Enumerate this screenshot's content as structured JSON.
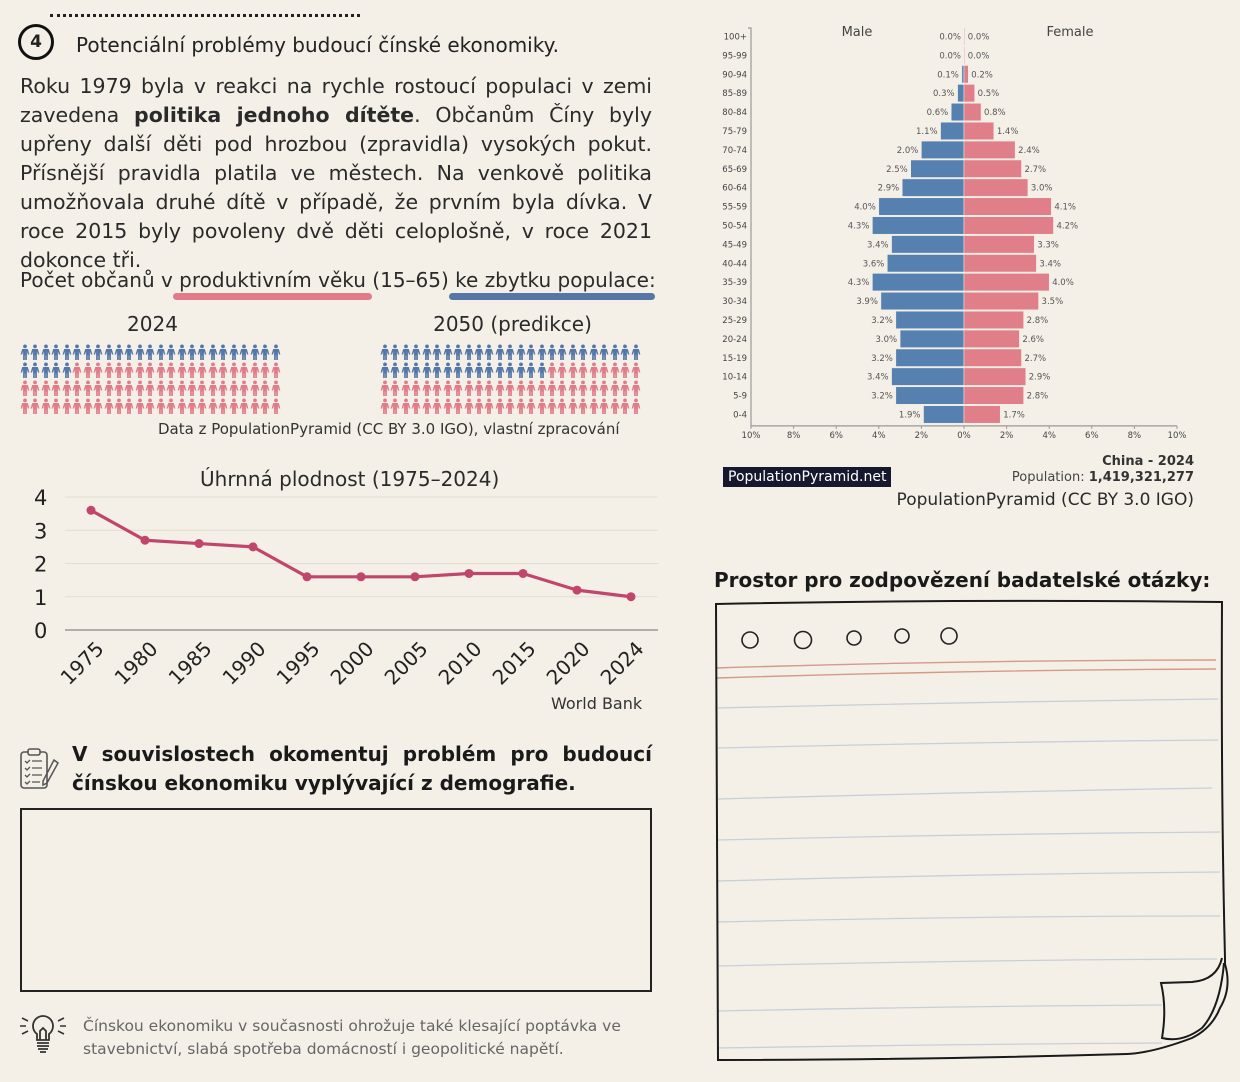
{
  "section": {
    "number": "4",
    "title": "Potenciální problémy budoucí čínské ekonomiky."
  },
  "intro": {
    "before_bold": "Roku 1979 byla v reakci na rychle rostoucí populaci v zemi zavedena ",
    "bold": "politika jednoho dítěte",
    "after_bold": ". Občanům Číny byly upřeny další děti pod hrozbou (zpravidla) vysokých pokut. Přísnější pravidla platila ve městech. Na venkově politika umožňovala druhé dítě v případě, že prvním byla dívka. V roce 2015 byly povoleny dvě děti celoplošně, v roce 2021 dokonce tři."
  },
  "ratio": {
    "heading_part1": "Počet občanů v ",
    "heading_pink": "produktivním věku",
    "heading_part2": " (15–65) ",
    "heading_blue": "ke zbytku populace",
    "heading_part3": ":",
    "colors": {
      "productive": "#e07b89",
      "rest": "#5477a8"
    },
    "panels": [
      {
        "title": "2024",
        "rest_count": 30,
        "productive_count": 70
      },
      {
        "title": "2050 (predikce)",
        "rest_count": 41,
        "productive_count": 59
      }
    ],
    "credit": "Data z PopulationPyramid (CC BY 3.0 IGO), vlastní zpracování"
  },
  "chart_data": [
    {
      "type": "line",
      "title": "Úhrnná plodnost (1975–2024)",
      "xlabel": "",
      "ylabel": "",
      "x": [
        "1975",
        "1980",
        "1985",
        "1990",
        "1995",
        "2000",
        "2005",
        "2010",
        "2015",
        "2020",
        "2024"
      ],
      "series": [
        {
          "name": "Úhrnná plodnost",
          "values": [
            3.6,
            2.7,
            2.6,
            2.5,
            1.6,
            1.6,
            1.6,
            1.7,
            1.7,
            1.2,
            1.0
          ],
          "color": "#c2456a"
        }
      ],
      "ylim": [
        0,
        4
      ],
      "yticks": [
        "0",
        "1",
        "2",
        "3",
        "4"
      ],
      "grid": true,
      "source": "World Bank"
    },
    {
      "type": "bar",
      "subtype": "population-pyramid",
      "title": "China - 2024",
      "categories": [
        "100+",
        "95-99",
        "90-94",
        "85-89",
        "80-84",
        "75-79",
        "70-74",
        "65-69",
        "60-64",
        "55-59",
        "50-54",
        "45-49",
        "40-44",
        "35-39",
        "30-34",
        "25-29",
        "20-24",
        "15-19",
        "10-14",
        "5-9",
        "0-4"
      ],
      "series": [
        {
          "name": "Male",
          "color": "#5680b0",
          "values": [
            0.0,
            0.0,
            0.1,
            0.3,
            0.6,
            1.1,
            2.0,
            2.5,
            2.9,
            4.0,
            4.3,
            3.4,
            3.6,
            4.3,
            3.9,
            3.2,
            3.0,
            3.2,
            3.4,
            3.2,
            1.9
          ]
        },
        {
          "name": "Female",
          "color": "#e07e89",
          "values": [
            0.0,
            0.0,
            0.2,
            0.5,
            0.8,
            1.4,
            2.4,
            2.7,
            3.0,
            4.1,
            4.2,
            3.3,
            3.4,
            4.0,
            3.5,
            2.8,
            2.6,
            2.7,
            2.9,
            2.8,
            1.7
          ]
        }
      ],
      "value_labels": {
        "male": [
          "0.0%",
          "0.0%",
          "0.1%",
          "0.3%",
          "0.6%",
          "1.1%",
          "2.0%",
          "2.5%",
          "2.9%",
          "4.0%",
          "4.3%",
          "3.4%",
          "3.6%",
          "4.3%",
          "3.9%",
          "3.2%",
          "3.0%",
          "3.2%",
          "3.4%",
          "3.2%",
          "1.9%"
        ],
        "female": [
          "0.0%",
          "0.0%",
          "0.2%",
          "0.5%",
          "0.8%",
          "1.4%",
          "2.4%",
          "2.7%",
          "3.0%",
          "4.1%",
          "4.2%",
          "3.3%",
          "3.4%",
          "4.0%",
          "3.5%",
          "2.8%",
          "2.6%",
          "2.7%",
          "2.9%",
          "2.8%",
          "1.7%"
        ]
      },
      "xticks": [
        "10%",
        "8%",
        "6%",
        "4%",
        "2%",
        "0%",
        "2%",
        "4%",
        "6%",
        "8%",
        "10%"
      ],
      "xlim": [
        -10,
        10
      ],
      "population_label": "Population:",
      "population": "1,419,321,277",
      "badge": "PopulationPyramid.net",
      "credit": "PopulationPyramid (CC BY 3.0 IGO)"
    }
  ],
  "task": {
    "text": "V souvislostech okomentuj problém pro budoucí čínskou ekonomiku vyplývající z demografie.",
    "answer_value": ""
  },
  "tip": {
    "text": "Čínskou ekonomiku v současnosti  ohrožuje také klesající poptávka ve stavebnictví, slabá spotřeba domácností i geopolitické napětí."
  },
  "notebook": {
    "title": "Prostor pro zodpovězení badatelské otázky:",
    "answer_value": ""
  }
}
